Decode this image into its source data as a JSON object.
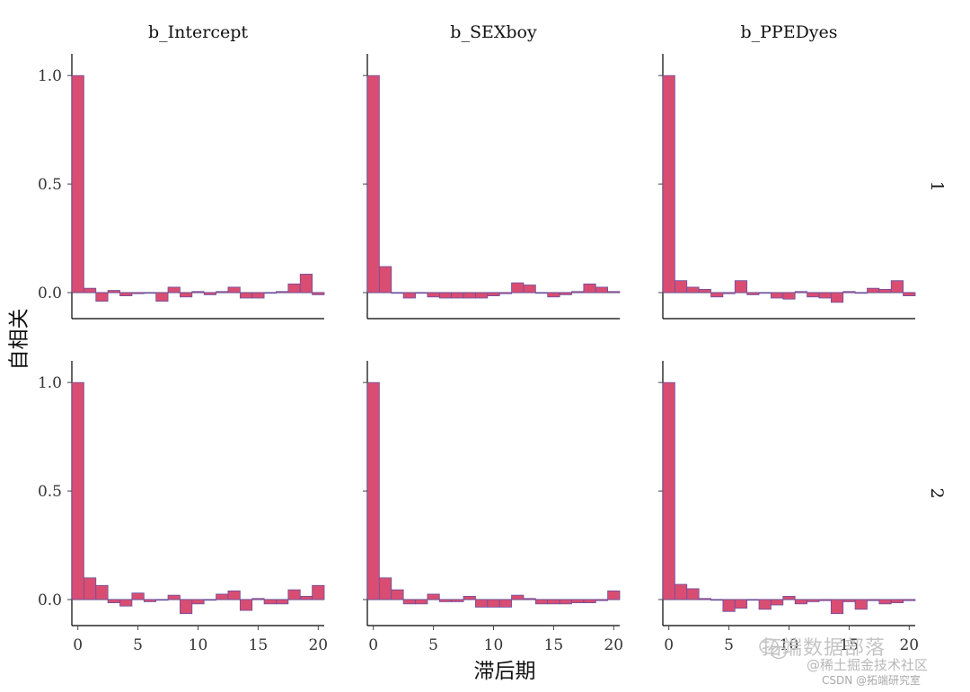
{
  "chart_data": {
    "type": "bar",
    "title": "",
    "xlabel": "滞后期",
    "ylabel": "自相关",
    "xlim": [
      -0.5,
      20.5
    ],
    "ylim": [
      -0.12,
      1.1
    ],
    "x_ticks": [
      0,
      5,
      10,
      15,
      20
    ],
    "y_ticks": [
      0.0,
      0.5,
      1.0
    ],
    "y_tick_labels": [
      "0.0",
      "0.5",
      "1.0"
    ],
    "x_tick_labels": [
      "0",
      "5",
      "10",
      "15",
      "20"
    ],
    "columns": [
      "b_Intercept",
      "b_SEXboy",
      "b_PPEDyes"
    ],
    "rows": [
      "1",
      "2"
    ],
    "bar_fill": "#d94d72",
    "bar_stroke": "#6a4fa0",
    "lags": [
      0,
      1,
      2,
      3,
      4,
      5,
      6,
      7,
      8,
      9,
      10,
      11,
      12,
      13,
      14,
      15,
      16,
      17,
      18,
      19,
      20
    ],
    "panels": [
      {
        "row": "1",
        "column": "b_Intercept",
        "values": [
          1.0,
          0.02,
          -0.04,
          0.01,
          -0.015,
          -0.005,
          0.0,
          -0.04,
          0.025,
          -0.02,
          0.005,
          -0.01,
          0.005,
          0.025,
          -0.025,
          -0.025,
          0.0,
          0.005,
          0.04,
          0.085,
          -0.01
        ]
      },
      {
        "row": "1",
        "column": "b_SEXboy",
        "values": [
          1.0,
          0.12,
          0.0,
          -0.025,
          0.0,
          -0.02,
          -0.025,
          -0.025,
          -0.025,
          -0.025,
          -0.015,
          -0.005,
          0.045,
          0.035,
          0.0,
          -0.02,
          -0.01,
          0.005,
          0.04,
          0.025,
          0.005
        ]
      },
      {
        "row": "1",
        "column": "b_PPEDyes",
        "values": [
          1.0,
          0.055,
          0.025,
          0.015,
          -0.02,
          -0.005,
          0.055,
          -0.01,
          0.0,
          -0.025,
          -0.03,
          0.005,
          -0.02,
          -0.025,
          -0.045,
          0.005,
          0.0,
          0.02,
          0.015,
          0.055,
          -0.015
        ]
      },
      {
        "row": "2",
        "column": "b_Intercept",
        "values": [
          1.0,
          0.1,
          0.065,
          -0.015,
          -0.03,
          0.03,
          -0.01,
          0.0,
          0.02,
          -0.065,
          -0.02,
          0.0,
          0.025,
          0.04,
          -0.05,
          0.005,
          -0.02,
          -0.02,
          0.045,
          0.015,
          0.065
        ]
      },
      {
        "row": "2",
        "column": "b_SEXboy",
        "values": [
          1.0,
          0.1,
          0.045,
          -0.02,
          -0.02,
          0.025,
          -0.01,
          -0.01,
          0.015,
          -0.035,
          -0.035,
          -0.035,
          0.02,
          0.005,
          -0.02,
          -0.02,
          -0.02,
          -0.015,
          -0.015,
          -0.005,
          0.04
        ]
      },
      {
        "row": "2",
        "column": "b_PPEDyes",
        "values": [
          1.0,
          0.07,
          0.05,
          0.005,
          0.0,
          -0.055,
          -0.04,
          0.0,
          -0.045,
          -0.025,
          0.015,
          -0.02,
          -0.01,
          -0.005,
          -0.065,
          -0.01,
          -0.045,
          -0.005,
          -0.02,
          -0.015,
          -0.005
        ]
      }
    ]
  },
  "watermarks": {
    "line1": "拓端数据部落",
    "line2": "@稀土掘金技术社区",
    "line3": "CSDN @拓端研究室"
  }
}
